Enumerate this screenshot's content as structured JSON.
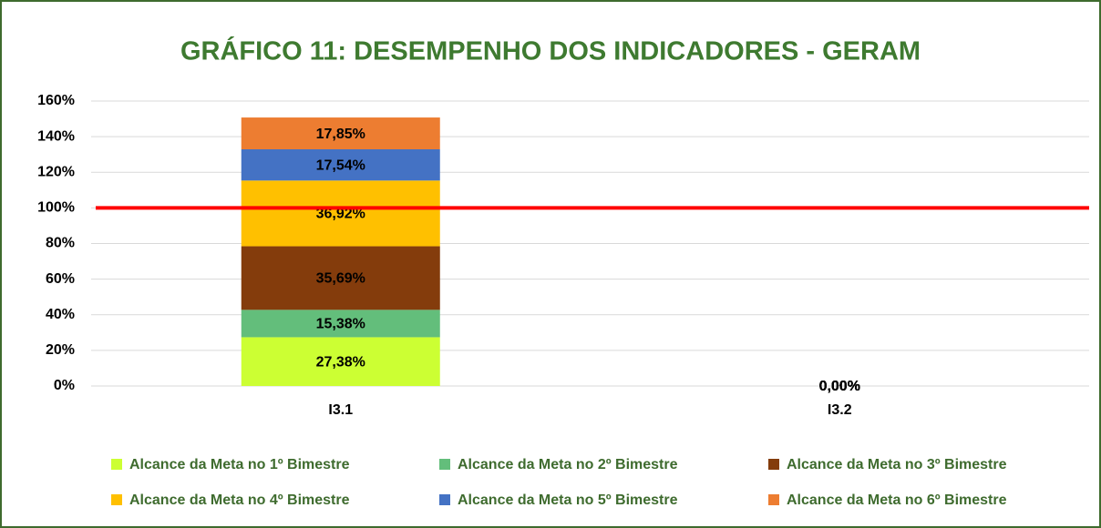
{
  "chart_data": {
    "type": "stacked_bar",
    "title": "GRÁFICO 11: DESEMPENHO DOS INDICADORES - GERAM",
    "categories": [
      "I3.1",
      "I3.2"
    ],
    "series": [
      {
        "name": "Alcance da Meta no 1º Bimestre",
        "color": "#ccff33",
        "values": [
          27.38,
          0
        ],
        "value_labels": [
          "27,38%",
          "0,00%"
        ]
      },
      {
        "name": "Alcance da Meta no 2º Bimestre",
        "color": "#63be7b",
        "values": [
          15.38,
          0
        ],
        "value_labels": [
          "15,38%",
          "0,00%"
        ]
      },
      {
        "name": "Alcance da Meta no 3º Bimestre",
        "color": "#843c0c",
        "values": [
          35.69,
          0
        ],
        "value_labels": [
          "35,69%",
          "0,00%"
        ]
      },
      {
        "name": "Alcance da Meta no 4º Bimestre",
        "color": "#ffc000",
        "values": [
          36.92,
          0
        ],
        "value_labels": [
          "36,92%",
          "0,00%"
        ]
      },
      {
        "name": "Alcance da Meta no 5º Bimestre",
        "color": "#4472c4",
        "values": [
          17.54,
          0
        ],
        "value_labels": [
          "17,54%",
          "0,00%"
        ]
      },
      {
        "name": "Alcance da Meta no 6º Bimestre",
        "color": "#ed7d31",
        "values": [
          17.85,
          0
        ],
        "value_labels": [
          "17,85%",
          "0,00%"
        ]
      }
    ],
    "reference_line": {
      "value": 100,
      "color": "#ff0000"
    },
    "ylim": [
      0,
      160
    ],
    "yticks": [
      {
        "value": 0,
        "label": "0%"
      },
      {
        "value": 20,
        "label": "20%"
      },
      {
        "value": 40,
        "label": "40%"
      },
      {
        "value": 60,
        "label": "60%"
      },
      {
        "value": 80,
        "label": "80%"
      },
      {
        "value": 100,
        "label": "100%"
      },
      {
        "value": 120,
        "label": "120%"
      },
      {
        "value": 140,
        "label": "140%"
      },
      {
        "value": 160,
        "label": "160%"
      }
    ],
    "grid": true,
    "legend": "bottom"
  }
}
